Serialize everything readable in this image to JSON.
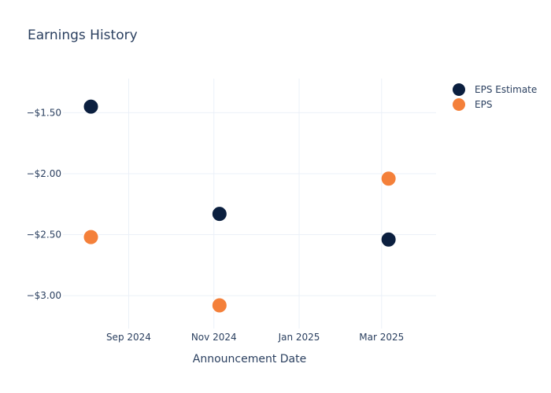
{
  "chart_data": {
    "type": "scatter",
    "title": "Earnings History",
    "xlabel": "Announcement Date",
    "ylabel": "",
    "x_ticks": [
      {
        "date": "2024-09-01",
        "label": "Sep 2024"
      },
      {
        "date": "2024-11-01",
        "label": "Nov 2024"
      },
      {
        "date": "2025-01-01",
        "label": "Jan 2025"
      },
      {
        "date": "2025-03-01",
        "label": "Mar 2025"
      }
    ],
    "y_ticks": [
      {
        "value": -1.5,
        "label": "−$1.50"
      },
      {
        "value": -2.0,
        "label": "−$2.00"
      },
      {
        "value": -2.5,
        "label": "−$2.50"
      },
      {
        "value": -3.0,
        "label": "−$3.00"
      }
    ],
    "xlim": [
      "2024-07-16",
      "2025-04-09"
    ],
    "ylim": [
      -3.27,
      -1.22
    ],
    "grid": true,
    "legend_position": "top-right",
    "series": [
      {
        "name": "EPS Estimate",
        "color": "#0b1f3f",
        "points": [
          {
            "x": "2024-08-05",
            "y": -1.45
          },
          {
            "x": "2024-11-05",
            "y": -2.33
          },
          {
            "x": "2025-03-06",
            "y": -2.54
          }
        ]
      },
      {
        "name": "EPS",
        "color": "#f4803a",
        "points": [
          {
            "x": "2024-08-05",
            "y": -2.52
          },
          {
            "x": "2024-11-05",
            "y": -3.08
          },
          {
            "x": "2025-03-06",
            "y": -2.04
          }
        ]
      }
    ]
  }
}
